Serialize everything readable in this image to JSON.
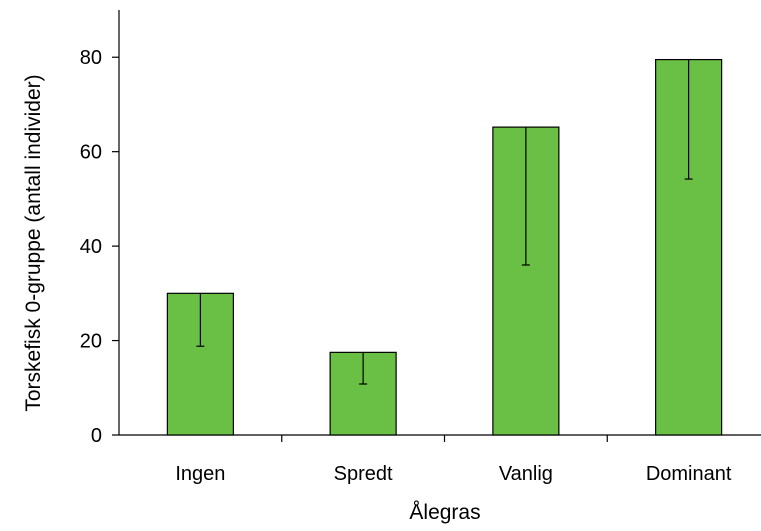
{
  "chart_data": {
    "type": "bar",
    "title": "",
    "xlabel": "Ålegras",
    "ylabel": "Torskefisk 0-gruppe  (antall individer)",
    "categories": [
      "Ingen",
      "Spredt",
      "Vanlig",
      "Dominant"
    ],
    "series": [
      {
        "values": [
          30,
          17.5,
          65.2,
          79.5
        ],
        "error_lower": [
          18.8,
          10.8,
          36,
          54.2
        ]
      }
    ],
    "ylim": [
      0,
      90
    ],
    "yticks": [
      0,
      20,
      40,
      60,
      80
    ],
    "grid": false,
    "legend": "none",
    "colors": {
      "bar_fill": "#6abf45",
      "bar_stroke": "#000000",
      "axis": "#000000"
    }
  }
}
